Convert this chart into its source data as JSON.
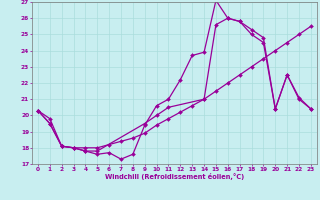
{
  "title": "",
  "xlabel": "Windchill (Refroidissement éolien,°C)",
  "ylabel": "",
  "bg_color": "#c8eef0",
  "line_color": "#990099",
  "grid_color": "#aadddd",
  "xlim": [
    -0.5,
    23.5
  ],
  "ylim": [
    17,
    27
  ],
  "xticks": [
    0,
    1,
    2,
    3,
    4,
    5,
    6,
    7,
    8,
    9,
    10,
    11,
    12,
    13,
    14,
    15,
    16,
    17,
    18,
    19,
    20,
    21,
    22,
    23
  ],
  "yticks": [
    17,
    18,
    19,
    20,
    21,
    22,
    23,
    24,
    25,
    26,
    27
  ],
  "line1_x": [
    0,
    1,
    2,
    3,
    4,
    5,
    6,
    7,
    8,
    9,
    10,
    11,
    12,
    13,
    14,
    15,
    16,
    17,
    18,
    19,
    20,
    21,
    22,
    23
  ],
  "line1_y": [
    20.3,
    19.5,
    18.1,
    18.0,
    17.8,
    17.6,
    17.7,
    17.3,
    17.6,
    19.4,
    20.6,
    21.0,
    22.2,
    23.7,
    23.9,
    27.1,
    26.0,
    25.8,
    25.3,
    24.8,
    20.4,
    22.5,
    21.1,
    20.4
  ],
  "line2_x": [
    0,
    1,
    2,
    3,
    4,
    5,
    6,
    7,
    8,
    9,
    10,
    11,
    12,
    13,
    14,
    15,
    16,
    17,
    18,
    19,
    20,
    21,
    22,
    23
  ],
  "line2_y": [
    20.3,
    19.8,
    18.1,
    18.0,
    18.0,
    18.0,
    18.2,
    18.4,
    18.6,
    18.9,
    19.4,
    19.8,
    20.2,
    20.6,
    21.0,
    21.5,
    22.0,
    22.5,
    23.0,
    23.5,
    24.0,
    24.5,
    25.0,
    25.5
  ],
  "line3_x": [
    0,
    1,
    2,
    3,
    4,
    5,
    9,
    10,
    11,
    14,
    15,
    16,
    17,
    18,
    19,
    20,
    21,
    22,
    23
  ],
  "line3_y": [
    20.3,
    19.5,
    18.1,
    18.0,
    17.8,
    17.8,
    19.5,
    20.0,
    20.5,
    21.0,
    25.6,
    26.0,
    25.8,
    25.0,
    24.5,
    20.4,
    22.5,
    21.0,
    20.4
  ]
}
